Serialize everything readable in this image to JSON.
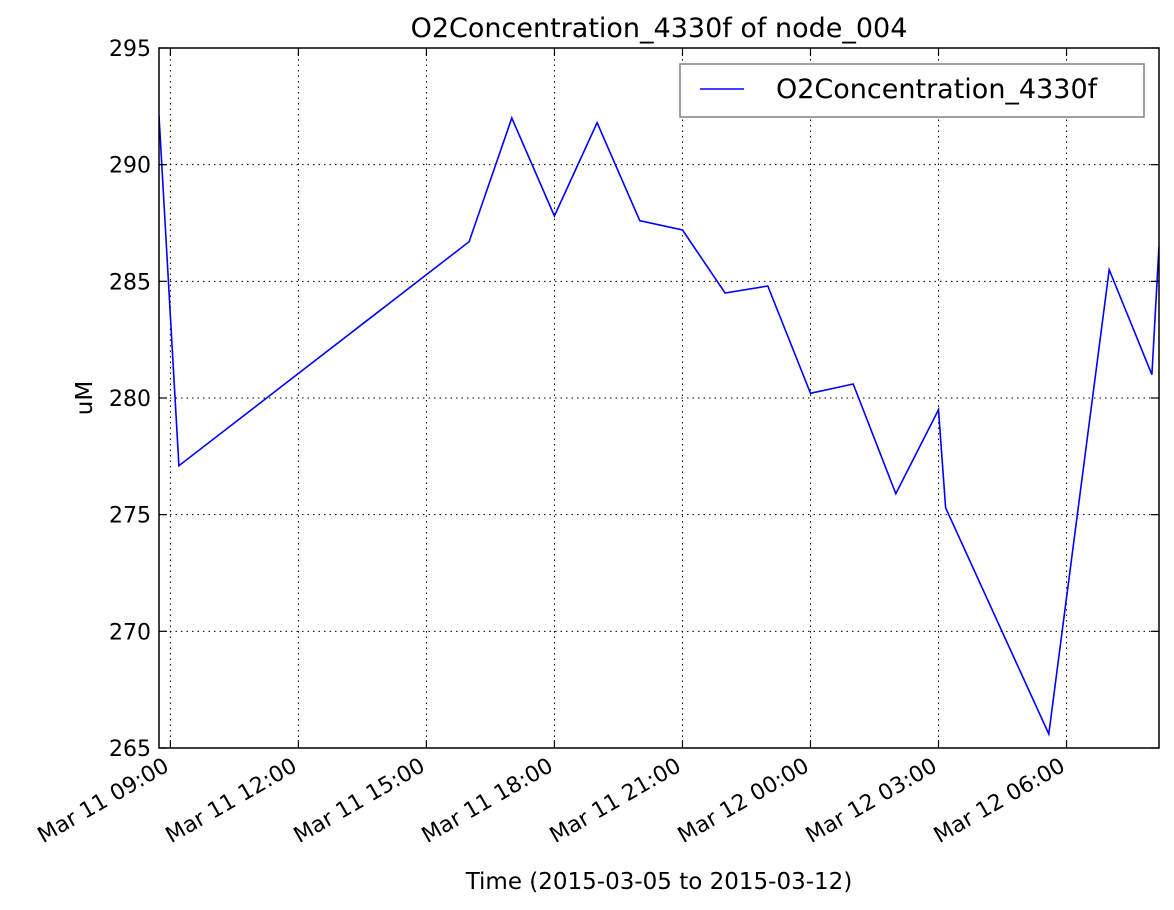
{
  "chart_data": {
    "type": "line",
    "title": "O2Concentration_4330f of node_004",
    "xlabel": "Time (2015-03-05 to 2015-03-12)",
    "ylabel": "uM",
    "ylim": [
      265,
      295
    ],
    "xlim": [
      "2015-03-11 08:44",
      "2015-03-12 08:10"
    ],
    "yticks": [
      265,
      270,
      275,
      280,
      285,
      290,
      295
    ],
    "xticks": [
      {
        "t": "2015-03-11 09:00",
        "label": "Mar 11 09:00"
      },
      {
        "t": "2015-03-11 12:00",
        "label": "Mar 11 12:00"
      },
      {
        "t": "2015-03-11 15:00",
        "label": "Mar 11 15:00"
      },
      {
        "t": "2015-03-11 18:00",
        "label": "Mar 11 18:00"
      },
      {
        "t": "2015-03-11 21:00",
        "label": "Mar 11 21:00"
      },
      {
        "t": "2015-03-12 00:00",
        "label": "Mar 12 00:00"
      },
      {
        "t": "2015-03-12 03:00",
        "label": "Mar 12 03:00"
      },
      {
        "t": "2015-03-12 06:00",
        "label": "Mar 12 06:00"
      }
    ],
    "grid": true,
    "legend_position": "top-right",
    "series": [
      {
        "name": "O2Concentration_4330f",
        "color": "#0000ff",
        "x": [
          "2015-03-11 08:44",
          "2015-03-11 09:12",
          "2015-03-11 16:00",
          "2015-03-11 17:00",
          "2015-03-11 18:00",
          "2015-03-11 19:00",
          "2015-03-11 20:00",
          "2015-03-11 21:00",
          "2015-03-11 22:00",
          "2015-03-11 23:00",
          "2015-03-12 00:00",
          "2015-03-12 01:00",
          "2015-03-12 02:00",
          "2015-03-12 03:00",
          "2015-03-12 03:10",
          "2015-03-12 05:35",
          "2015-03-12 07:00",
          "2015-03-12 08:00",
          "2015-03-12 08:10"
        ],
        "y": [
          292.1,
          277.1,
          286.7,
          292.0,
          287.8,
          291.8,
          287.6,
          287.2,
          284.5,
          284.8,
          280.2,
          280.6,
          275.9,
          279.5,
          275.3,
          265.6,
          285.5,
          281.0,
          286.5
        ]
      }
    ]
  }
}
